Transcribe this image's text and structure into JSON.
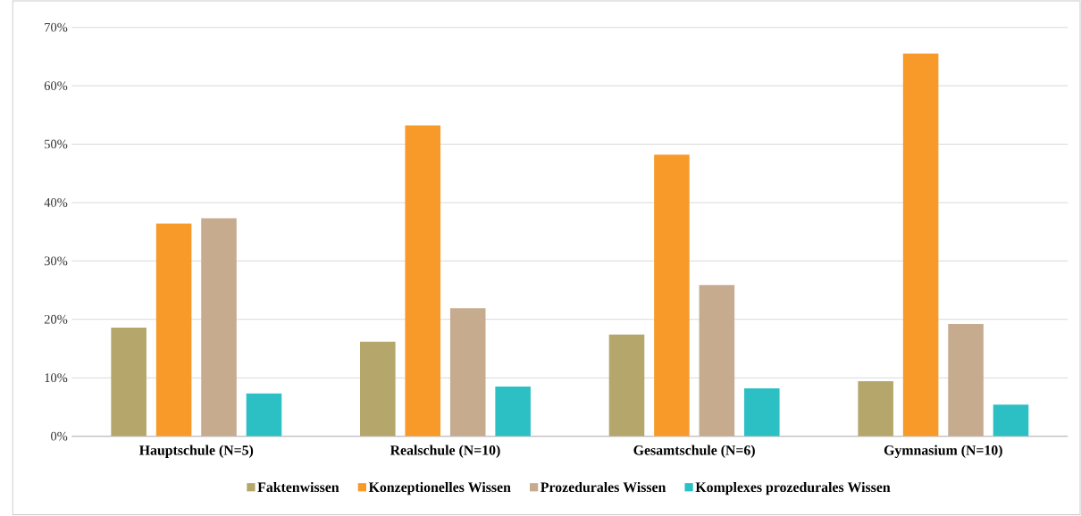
{
  "chart_data": {
    "type": "bar",
    "categories": [
      "Hauptschule (N=5)",
      "Realschule (N=10)",
      "Gesamtschule (N=6)",
      "Gymnasium (N=10)"
    ],
    "series": [
      {
        "name": "Faktenwissen",
        "color": "#b5a76b",
        "values": [
          18.6,
          16.2,
          17.4,
          9.4
        ]
      },
      {
        "name": "Konzeptionelles Wissen",
        "color": "#f79a2a",
        "values": [
          36.4,
          53.2,
          48.2,
          65.5
        ]
      },
      {
        "name": "Prozedurales Wissen",
        "color": "#c6ab8f",
        "values": [
          37.3,
          21.9,
          25.9,
          19.2
        ]
      },
      {
        "name": "Komplexes prozedurales Wissen",
        "color": "#2cbfc4",
        "values": [
          7.3,
          8.5,
          8.2,
          5.4
        ]
      }
    ],
    "ylim": [
      0,
      70
    ],
    "yticks": [
      {
        "value": 0,
        "label": "0%"
      },
      {
        "value": 10,
        "label": "10%"
      },
      {
        "value": 20,
        "label": "20%"
      },
      {
        "value": 30,
        "label": "30%"
      },
      {
        "value": 40,
        "label": "40%"
      },
      {
        "value": 50,
        "label": "50%"
      },
      {
        "value": 60,
        "label": "60%"
      },
      {
        "value": 70,
        "label": "70%"
      }
    ],
    "grid": "y",
    "legend": "bottom"
  }
}
